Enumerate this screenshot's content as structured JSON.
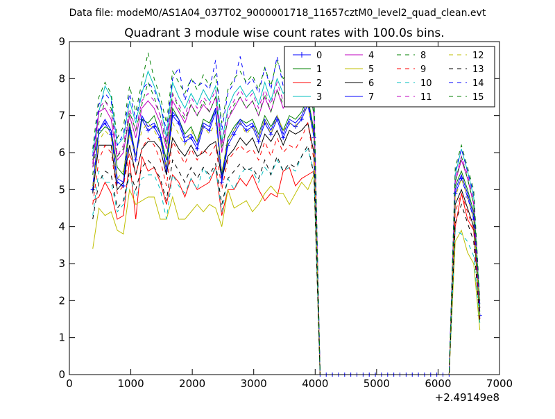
{
  "header": {
    "data_file": "Data file: modeM0/AS1A04_037T02_9000001718_11657cztM0_level2_quad_clean.evt"
  },
  "chart_data": {
    "type": "line",
    "title": "Quadrant 3 module wise count rates with 100.0s bins.",
    "xlabel": "",
    "ylabel": "",
    "x_offset_label": "+2.49149e8",
    "xlim": [
      0,
      7000
    ],
    "ylim": [
      0,
      9
    ],
    "x_ticks": [
      0,
      1000,
      2000,
      3000,
      4000,
      5000,
      6000,
      7000
    ],
    "y_ticks": [
      0,
      1,
      2,
      3,
      4,
      5,
      6,
      7,
      8,
      9
    ],
    "grid": false,
    "legend_position": "top-right",
    "legend_columns": 4,
    "x": [
      380,
      480,
      580,
      680,
      780,
      880,
      980,
      1080,
      1180,
      1280,
      1380,
      1480,
      1580,
      1680,
      1780,
      1880,
      1980,
      2080,
      2180,
      2280,
      2380,
      2480,
      2580,
      2680,
      2780,
      2880,
      2980,
      3080,
      3180,
      3280,
      3380,
      3480,
      3580,
      3680,
      3780,
      3880,
      3980,
      4080,
      4180,
      4280,
      4380,
      4480,
      4580,
      4680,
      4780,
      4880,
      4980,
      5080,
      5180,
      5280,
      5380,
      5480,
      5580,
      5680,
      5780,
      5880,
      5980,
      6080,
      6180,
      6280,
      6380,
      6480,
      6580,
      6680
    ],
    "series": [
      {
        "name": "0",
        "color": "#0000ff",
        "style": "solid",
        "marker": "plus",
        "values": [
          5.0,
          6.6,
          6.8,
          6.5,
          5.2,
          5.1,
          6.6,
          5.8,
          6.9,
          6.6,
          6.7,
          6.4,
          5.5,
          7.0,
          6.8,
          6.3,
          6.4,
          6.1,
          6.7,
          6.6,
          7.1,
          5.2,
          6.2,
          6.5,
          6.8,
          6.6,
          6.7,
          6.3,
          6.8,
          6.5,
          6.9,
          6.4,
          6.8,
          6.7,
          6.9,
          7.3,
          6.4,
          0,
          0,
          0,
          0,
          0,
          0,
          0,
          0,
          0,
          0,
          0,
          0,
          0,
          0,
          0,
          0,
          0,
          0,
          0,
          0,
          0,
          0,
          4.9,
          5.3,
          4.8,
          4.2,
          1.6
        ]
      },
      {
        "name": "1",
        "color": "#008000",
        "style": "solid",
        "values": [
          5.8,
          6.5,
          6.7,
          6.6,
          5.6,
          5.4,
          6.8,
          5.9,
          6.9,
          6.8,
          7.0,
          6.5,
          5.8,
          7.2,
          6.9,
          6.5,
          6.7,
          6.3,
          6.9,
          6.8,
          7.2,
          5.4,
          6.4,
          6.7,
          6.9,
          6.8,
          6.9,
          6.5,
          7.0,
          6.7,
          7.0,
          6.6,
          7.0,
          6.9,
          7.1,
          7.5,
          6.6,
          0,
          0,
          0,
          0,
          0,
          0,
          0,
          0,
          0,
          0,
          0,
          0,
          0,
          0,
          0,
          0,
          0,
          0,
          0,
          0,
          0,
          0,
          5.1,
          5.5,
          5.0,
          4.4,
          1.7
        ]
      },
      {
        "name": "2",
        "color": "#ff0000",
        "style": "solid",
        "values": [
          4.7,
          4.8,
          5.2,
          4.9,
          4.2,
          4.3,
          5.8,
          4.2,
          5.9,
          5.5,
          5.6,
          5.2,
          4.6,
          5.4,
          5.2,
          4.8,
          5.3,
          5.0,
          5.1,
          5.2,
          5.6,
          4.3,
          5.0,
          5.0,
          5.3,
          5.1,
          5.4,
          5.0,
          4.7,
          4.9,
          4.8,
          5.5,
          5.6,
          5.1,
          5.3,
          5.4,
          5.5,
          0,
          0,
          0,
          0,
          0,
          0,
          0,
          0,
          0,
          0,
          0,
          0,
          0,
          0,
          0,
          0,
          0,
          0,
          0,
          0,
          0,
          0,
          4.0,
          4.9,
          4.2,
          3.9,
          1.9
        ]
      },
      {
        "name": "3",
        "color": "#00bfbf",
        "style": "solid",
        "values": [
          6.0,
          7.1,
          7.8,
          7.5,
          6.2,
          6.4,
          7.4,
          6.8,
          7.6,
          8.2,
          7.8,
          7.3,
          6.4,
          7.9,
          7.5,
          7.2,
          7.6,
          7.3,
          7.7,
          7.4,
          7.8,
          6.3,
          7.2,
          7.6,
          7.8,
          7.5,
          7.7,
          7.3,
          7.9,
          7.4,
          8.0,
          7.6,
          7.8,
          7.7,
          8.0,
          8.6,
          7.3,
          0,
          0,
          0,
          0,
          0,
          0,
          0,
          0,
          0,
          0,
          0,
          0,
          0,
          0,
          0,
          0,
          0,
          0,
          0,
          0,
          0,
          0,
          5.4,
          6.1,
          5.5,
          4.8,
          1.9
        ]
      },
      {
        "name": "4",
        "color": "#bf00bf",
        "style": "solid",
        "values": [
          5.6,
          7.1,
          7.2,
          6.9,
          5.8,
          6.0,
          7.0,
          6.4,
          7.2,
          7.4,
          7.2,
          6.8,
          6.1,
          7.4,
          7.1,
          6.8,
          7.3,
          7.0,
          7.3,
          7.1,
          7.5,
          6.0,
          6.9,
          7.2,
          7.5,
          7.2,
          7.4,
          7.0,
          7.5,
          7.1,
          7.7,
          7.2,
          7.5,
          7.4,
          7.7,
          8.1,
          7.0,
          0,
          0,
          0,
          0,
          0,
          0,
          0,
          0,
          0,
          0,
          0,
          0,
          0,
          0,
          0,
          0,
          0,
          0,
          0,
          0,
          0,
          0,
          5.2,
          5.8,
          5.3,
          4.6,
          1.8
        ]
      },
      {
        "name": "5",
        "color": "#bfbf00",
        "style": "solid",
        "values": [
          3.4,
          4.5,
          4.3,
          4.4,
          3.9,
          3.8,
          5.0,
          4.6,
          4.7,
          4.8,
          4.8,
          4.2,
          4.2,
          4.8,
          4.2,
          4.2,
          4.4,
          4.6,
          4.4,
          4.6,
          4.5,
          4.0,
          5.0,
          4.5,
          4.6,
          4.7,
          4.4,
          4.6,
          4.9,
          5.1,
          4.9,
          4.9,
          4.6,
          4.9,
          5.2,
          5.0,
          5.4,
          0,
          0,
          0,
          0,
          0,
          0,
          0,
          0,
          0,
          0,
          0,
          0,
          0,
          0,
          0,
          0,
          0,
          0,
          0,
          0,
          0,
          0,
          3.6,
          3.9,
          3.3,
          3.0,
          1.2
        ]
      },
      {
        "name": "6",
        "color": "#000000",
        "style": "solid",
        "values": [
          4.9,
          6.2,
          6.2,
          6.2,
          5.0,
          5.2,
          6.2,
          5.4,
          6.1,
          6.3,
          6.3,
          6.1,
          5.4,
          6.4,
          6.1,
          5.9,
          6.2,
          5.9,
          6.0,
          6.2,
          6.3,
          5.3,
          5.9,
          6.1,
          6.4,
          6.2,
          6.4,
          6.0,
          6.5,
          6.3,
          6.6,
          6.2,
          6.6,
          6.5,
          6.6,
          6.8,
          6.0,
          0,
          0,
          0,
          0,
          0,
          0,
          0,
          0,
          0,
          0,
          0,
          0,
          0,
          0,
          0,
          0,
          0,
          0,
          0,
          0,
          0,
          0,
          4.6,
          5.0,
          4.5,
          4.0,
          1.5
        ]
      },
      {
        "name": "7",
        "color": "#0000ff",
        "style": "solid",
        "values": [
          5.1,
          6.6,
          6.9,
          6.6,
          5.3,
          5.2,
          6.7,
          5.9,
          7.0,
          6.7,
          6.8,
          6.5,
          5.6,
          7.1,
          6.9,
          6.4,
          6.5,
          6.2,
          6.8,
          6.7,
          7.2,
          5.3,
          6.3,
          6.6,
          6.9,
          6.7,
          6.8,
          6.4,
          6.9,
          6.6,
          7.0,
          6.5,
          6.9,
          6.8,
          7.0,
          7.4,
          6.5,
          0,
          0,
          0,
          0,
          0,
          0,
          0,
          0,
          0,
          0,
          0,
          0,
          0,
          0,
          0,
          0,
          0,
          0,
          0,
          0,
          0,
          0,
          5.0,
          5.4,
          4.9,
          4.3,
          1.6
        ]
      },
      {
        "name": "8",
        "color": "#008000",
        "style": "dashed",
        "values": [
          5.4,
          6.8,
          7.4,
          7.2,
          5.9,
          6.1,
          7.1,
          6.6,
          7.3,
          7.9,
          7.5,
          7.0,
          6.2,
          7.6,
          7.2,
          6.9,
          7.3,
          7.0,
          7.4,
          7.1,
          7.5,
          6.1,
          6.9,
          7.3,
          7.5,
          7.2,
          7.4,
          7.0,
          7.6,
          7.1,
          7.7,
          7.3,
          7.5,
          7.4,
          7.7,
          8.2,
          7.0,
          0,
          0,
          0,
          0,
          0,
          0,
          0,
          0,
          0,
          0,
          0,
          0,
          0,
          0,
          0,
          0,
          0,
          0,
          0,
          0,
          0,
          0,
          5.2,
          5.9,
          5.3,
          4.6,
          1.8
        ]
      },
      {
        "name": "9",
        "color": "#ff0000",
        "style": "dashed",
        "values": [
          4.6,
          5.8,
          6.2,
          6.0,
          4.9,
          5.1,
          6.0,
          5.4,
          6.1,
          6.4,
          6.2,
          5.8,
          5.1,
          6.3,
          6.0,
          5.7,
          6.1,
          5.8,
          6.1,
          5.9,
          6.2,
          5.0,
          5.8,
          6.0,
          6.2,
          6.0,
          6.1,
          5.8,
          6.3,
          5.9,
          6.4,
          6.0,
          6.2,
          6.1,
          6.4,
          6.8,
          5.8,
          0,
          0,
          0,
          0,
          0,
          0,
          0,
          0,
          0,
          0,
          0,
          0,
          0,
          0,
          0,
          0,
          0,
          0,
          0,
          0,
          0,
          0,
          4.4,
          4.9,
          4.4,
          3.9,
          1.5
        ]
      },
      {
        "name": "10",
        "color": "#00bfbf",
        "style": "dashed",
        "values": [
          4.3,
          5.5,
          5.2,
          5.2,
          4.4,
          4.6,
          5.4,
          4.8,
          5.3,
          5.4,
          5.4,
          5.0,
          4.2,
          5.4,
          5.1,
          4.9,
          5.3,
          5.0,
          5.6,
          5.3,
          5.6,
          4.4,
          5.3,
          5.0,
          5.4,
          5.6,
          5.5,
          5.2,
          5.6,
          5.4,
          5.8,
          5.5,
          5.6,
          5.5,
          5.9,
          6.1,
          5.5,
          0,
          0,
          0,
          0,
          0,
          0,
          0,
          0,
          0,
          0,
          0,
          0,
          0,
          0,
          0,
          0,
          0,
          0,
          0,
          0,
          0,
          0,
          3.9,
          3.8,
          3.6,
          3.2,
          1.4
        ]
      },
      {
        "name": "11",
        "color": "#bf00bf",
        "style": "dashed",
        "values": [
          5.7,
          7.2,
          7.4,
          7.1,
          5.9,
          6.2,
          7.2,
          6.6,
          7.4,
          7.6,
          7.4,
          7.0,
          6.3,
          7.6,
          7.3,
          7.0,
          7.5,
          7.2,
          7.5,
          7.3,
          7.7,
          6.2,
          7.1,
          7.4,
          7.7,
          7.4,
          7.6,
          7.2,
          7.7,
          7.3,
          7.9,
          7.4,
          7.7,
          7.6,
          7.9,
          8.3,
          7.2,
          0,
          0,
          0,
          0,
          0,
          0,
          0,
          0,
          0,
          0,
          0,
          0,
          0,
          0,
          0,
          0,
          0,
          0,
          0,
          0,
          0,
          0,
          5.3,
          5.9,
          5.4,
          4.7,
          1.8
        ]
      },
      {
        "name": "12",
        "color": "#bfbf00",
        "style": "dashed",
        "values": [
          5.1,
          6.3,
          6.6,
          6.4,
          5.3,
          5.5,
          6.5,
          5.9,
          6.6,
          6.8,
          6.6,
          6.3,
          5.6,
          6.8,
          6.5,
          6.2,
          6.6,
          6.3,
          6.7,
          6.5,
          6.8,
          5.5,
          6.3,
          6.6,
          6.8,
          6.5,
          6.7,
          6.4,
          6.9,
          6.5,
          7.0,
          6.6,
          6.8,
          6.7,
          7.0,
          7.3,
          6.4,
          0,
          0,
          0,
          0,
          0,
          0,
          0,
          0,
          0,
          0,
          0,
          0,
          0,
          0,
          0,
          0,
          0,
          0,
          0,
          0,
          0,
          0,
          4.8,
          5.3,
          4.8,
          4.2,
          1.6
        ]
      },
      {
        "name": "13",
        "color": "#000000",
        "style": "dashed",
        "values": [
          4.2,
          5.2,
          5.5,
          5.4,
          4.5,
          4.7,
          5.5,
          5.0,
          5.6,
          5.8,
          5.6,
          5.3,
          4.7,
          5.8,
          5.5,
          5.2,
          5.6,
          5.3,
          5.6,
          5.4,
          5.7,
          4.6,
          5.3,
          5.5,
          5.7,
          5.5,
          5.6,
          5.3,
          5.8,
          5.4,
          5.9,
          5.5,
          5.7,
          5.6,
          5.9,
          6.2,
          5.4,
          0,
          0,
          0,
          0,
          0,
          0,
          0,
          0,
          0,
          0,
          0,
          0,
          0,
          0,
          0,
          0,
          0,
          0,
          0,
          0,
          0,
          0,
          4.1,
          4.6,
          4.1,
          3.6,
          1.4
        ]
      },
      {
        "name": "14",
        "color": "#0000ff",
        "style": "dashed",
        "values": [
          5.9,
          7.3,
          7.6,
          7.4,
          6.2,
          6.5,
          7.6,
          6.9,
          7.7,
          7.9,
          7.7,
          7.3,
          6.6,
          8.0,
          8.3,
          7.4,
          8.0,
          7.8,
          7.9,
          7.7,
          8.5,
          6.6,
          7.6,
          7.9,
          8.6,
          7.8,
          8.0,
          7.6,
          8.3,
          7.7,
          8.6,
          7.8,
          8.2,
          8.0,
          8.3,
          8.6,
          7.6,
          0,
          0,
          0,
          0,
          0,
          0,
          0,
          0,
          0,
          0,
          0,
          0,
          0,
          0,
          0,
          0,
          0,
          0,
          0,
          0,
          0,
          0,
          5.5,
          6.1,
          5.5,
          4.9,
          1.9
        ]
      },
      {
        "name": "15",
        "color": "#008000",
        "style": "dashed",
        "values": [
          6.1,
          7.5,
          7.9,
          7.6,
          6.4,
          6.7,
          7.8,
          7.1,
          7.9,
          8.7,
          8.0,
          7.5,
          6.8,
          8.2,
          7.9,
          7.6,
          8.0,
          7.7,
          8.1,
          7.8,
          8.1,
          6.8,
          7.7,
          8.0,
          8.2,
          7.9,
          8.1,
          7.7,
          8.3,
          7.8,
          8.5,
          8.0,
          8.2,
          8.1,
          8.4,
          8.7,
          7.7,
          0,
          0,
          0,
          0,
          0,
          0,
          0,
          0,
          0,
          0,
          0,
          0,
          0,
          0,
          0,
          0,
          0,
          0,
          0,
          0,
          0,
          0,
          5.6,
          6.2,
          5.6,
          5.0,
          2.0
        ]
      }
    ]
  }
}
